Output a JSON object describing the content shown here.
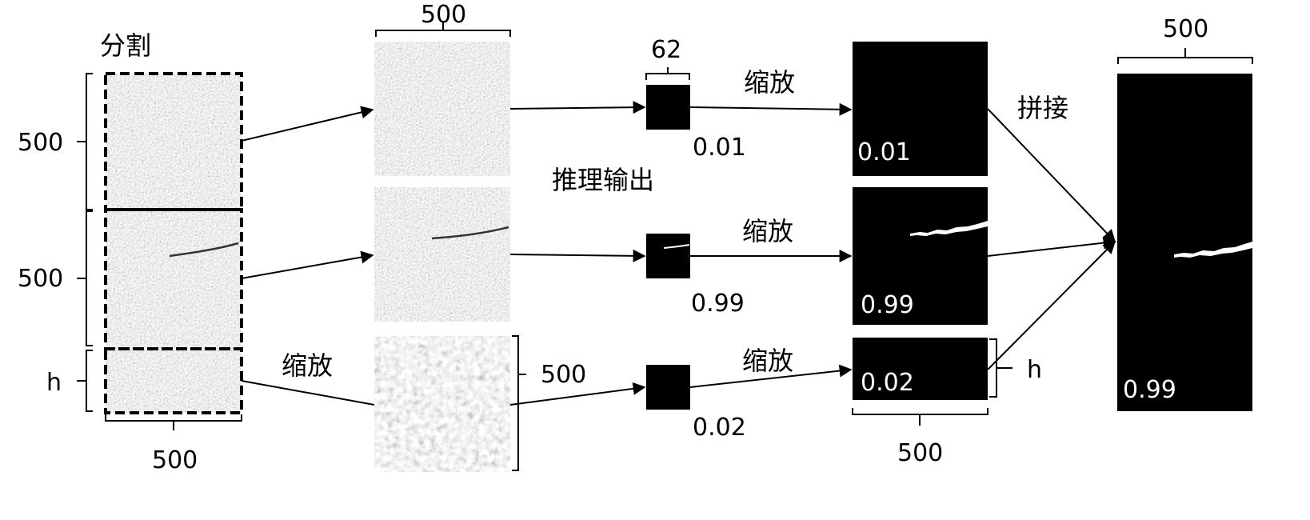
{
  "labels": {
    "split": "分割",
    "inference": "推理输出",
    "scale": "缩放",
    "concat": "拼接",
    "dim_500": "500",
    "dim_62": "62",
    "dim_h": "h"
  },
  "scores": {
    "tile1": "0.01",
    "tile2": "0.99",
    "tile3": "0.02",
    "final": "0.99"
  },
  "colors": {
    "line": "#000000",
    "mask_bg": "#000000",
    "crack": "#ffffff",
    "tile_noise": "#b4b4b4",
    "dash_border": "#000000"
  }
}
